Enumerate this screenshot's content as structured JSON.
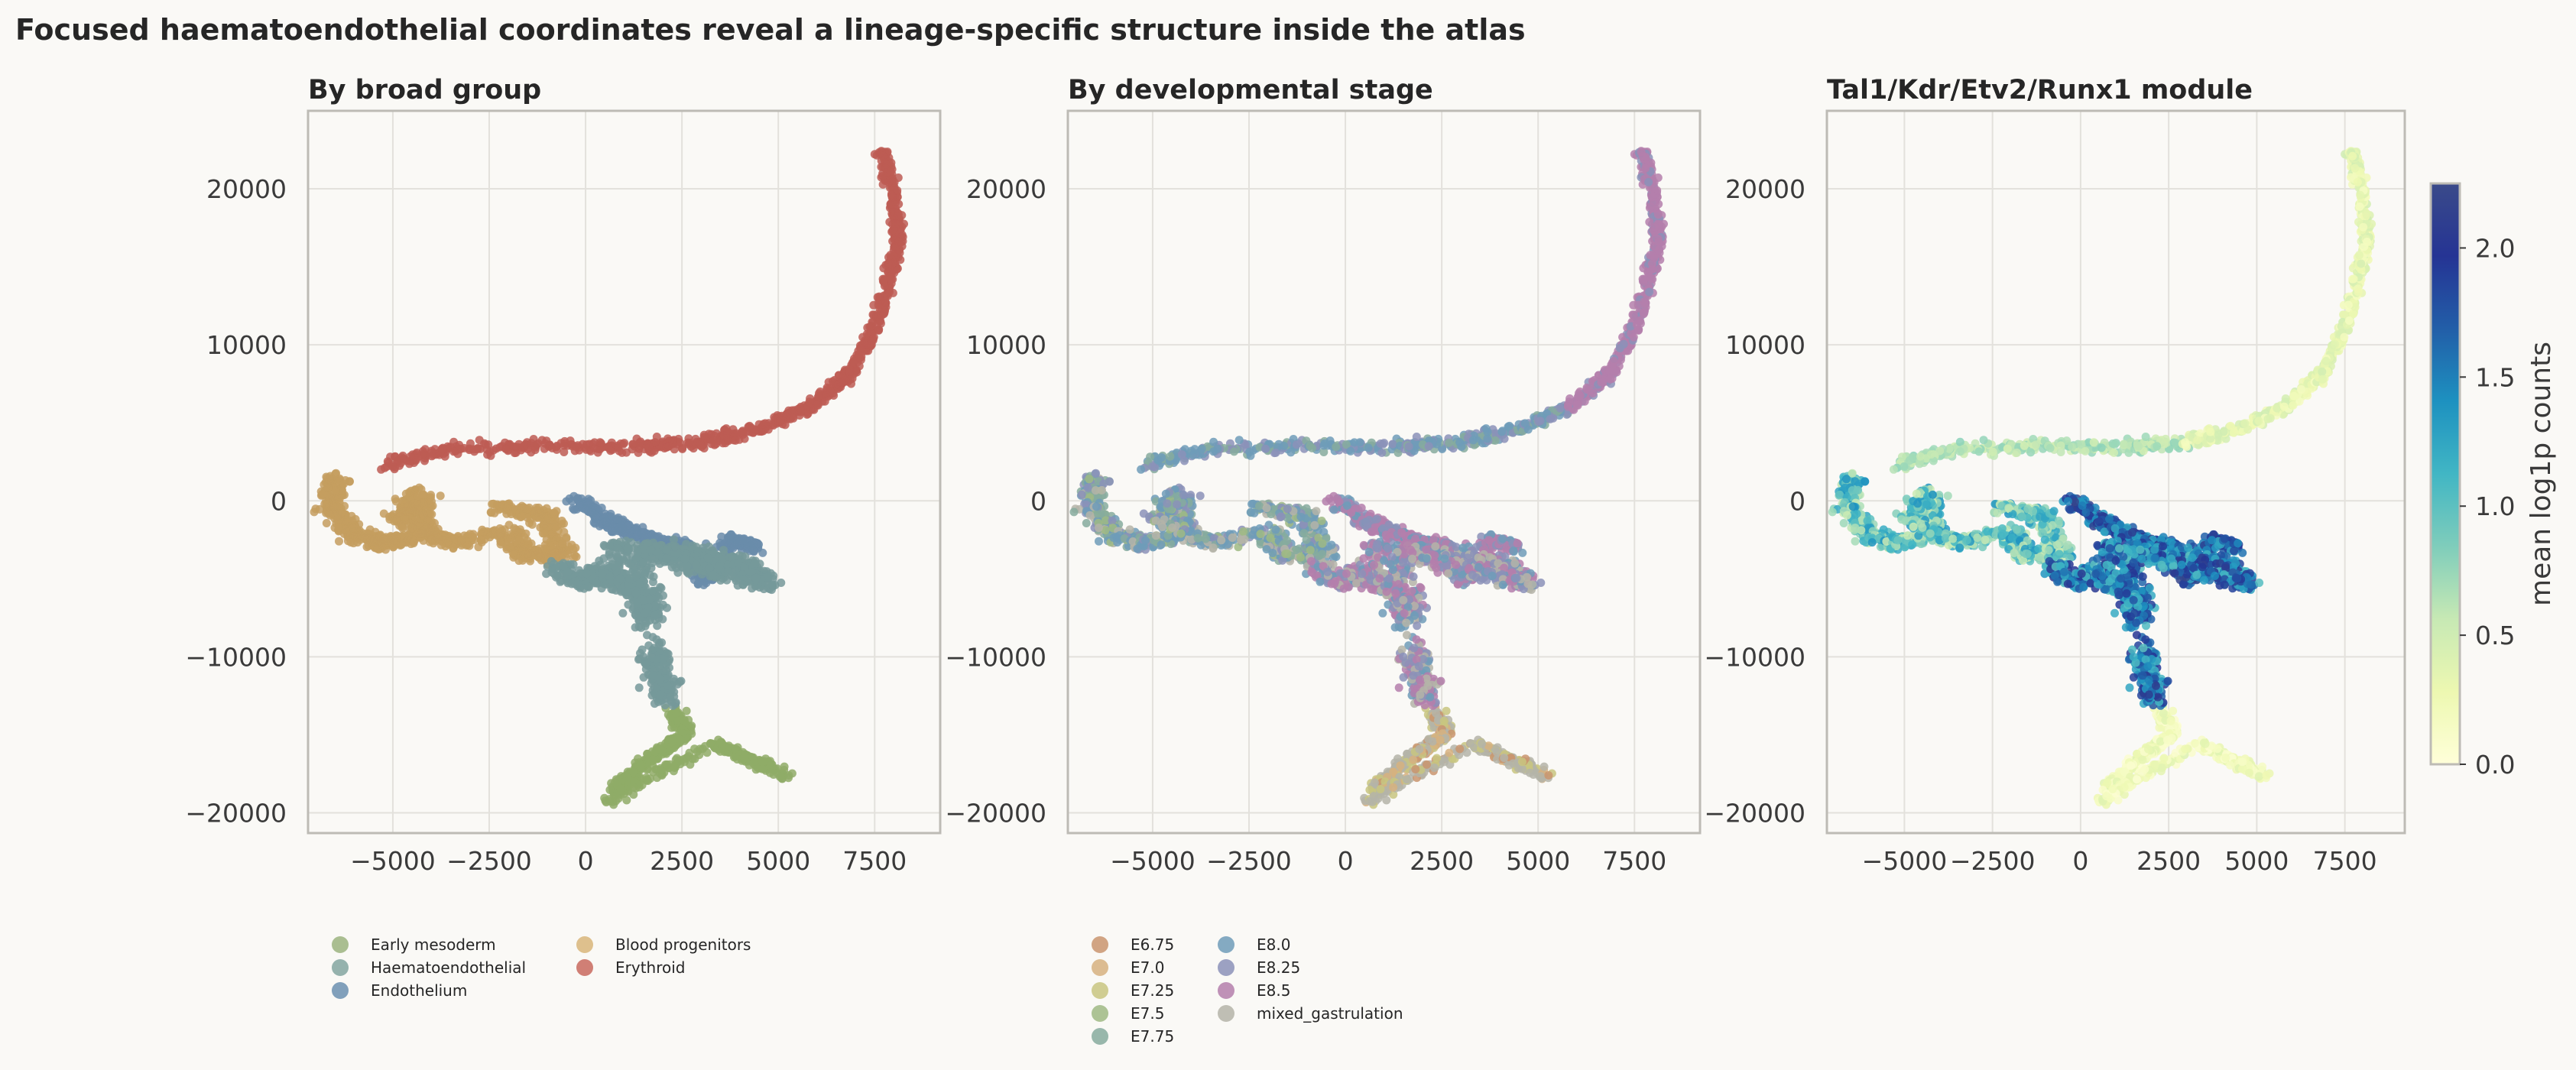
{
  "figure": {
    "suptitle": "Focused haematoendothelial coordinates reveal a lineage-specific structure inside the atlas"
  },
  "chart_data": [
    {
      "type": "scatter",
      "title": "By broad group",
      "xlabel": "",
      "ylabel": "",
      "xlim": [
        -7200,
        9200
      ],
      "ylim": [
        -21300,
        25000
      ],
      "xticks": [
        -5000,
        -2500,
        0,
        2500,
        5000,
        7500
      ],
      "yticks": [
        -20000,
        -10000,
        0,
        10000,
        20000
      ],
      "grid": true,
      "color_by": "category",
      "legend": {
        "placement": "bottom",
        "columns": 2,
        "entries": [
          {
            "label": "Early mesoderm",
            "color": "#9bb47f"
          },
          {
            "label": "Haematoendothelial",
            "color": "#82a6a0"
          },
          {
            "label": "Endothelium",
            "color": "#6b90b0"
          },
          {
            "label": "Blood progenitors",
            "color": "#d8b67a"
          },
          {
            "label": "Erythroid",
            "color": "#c86a5e"
          }
        ]
      },
      "series": [
        {
          "name": "Erythroid",
          "color": "#bd5c53",
          "points": [
            [
              -5200,
              2300
            ],
            [
              -3500,
              3300
            ],
            [
              -1000,
              3500
            ],
            [
              1500,
              3500
            ],
            [
              3000,
              3800
            ],
            [
              4500,
              4600
            ],
            [
              5800,
              6000
            ],
            [
              6800,
              8000
            ],
            [
              7400,
              10500
            ],
            [
              7800,
              13500
            ],
            [
              8100,
              16500
            ],
            [
              8000,
              19500
            ],
            [
              7700,
              22500
            ]
          ]
        },
        {
          "name": "Blood progenitors",
          "color": "#c49e5f",
          "points": [
            [
              -6500,
              1500
            ],
            [
              -6600,
              -400
            ],
            [
              -6000,
              -2200
            ],
            [
              -5200,
              -2700
            ],
            [
              -4000,
              -2300
            ],
            [
              -4300,
              500
            ],
            [
              -4800,
              -1200
            ],
            [
              -3500,
              -2700
            ],
            [
              -2000,
              -2000
            ],
            [
              -1500,
              -3500
            ],
            [
              -600,
              -3500
            ],
            [
              -1000,
              -900
            ],
            [
              -2200,
              -400
            ]
          ]
        },
        {
          "name": "Haematoendothelial",
          "color": "#75999a",
          "points": [
            [
              -800,
              -4200
            ],
            [
              0,
              -5300
            ],
            [
              400,
              -4500
            ],
            [
              1500,
              -6000
            ],
            [
              1700,
              -7500
            ],
            [
              1300,
              -3300
            ],
            [
              2500,
              -3300
            ],
            [
              3500,
              -3700
            ],
            [
              4200,
              -4200
            ],
            [
              4700,
              -5300
            ],
            [
              3000,
              -4300
            ],
            [
              700,
              -2700
            ],
            [
              1800,
              -9500
            ],
            [
              1900,
              -11500
            ],
            [
              2200,
              -12800
            ]
          ]
        },
        {
          "name": "Endothelium",
          "color": "#6a8caa",
          "points": [
            [
              -200,
              0
            ],
            [
              500,
              -1200
            ],
            [
              1200,
              -2000
            ],
            [
              2000,
              -2700
            ],
            [
              2700,
              -2900
            ],
            [
              3000,
              -5100
            ],
            [
              3800,
              -2500
            ],
            [
              4400,
              -3000
            ]
          ]
        },
        {
          "name": "Early mesoderm",
          "color": "#8fac67",
          "points": [
            [
              2300,
              -13500
            ],
            [
              2600,
              -15000
            ],
            [
              2000,
              -16000
            ],
            [
              1200,
              -17500
            ],
            [
              600,
              -19100
            ],
            [
              3300,
              -15600
            ],
            [
              4200,
              -16500
            ],
            [
              5200,
              -17600
            ]
          ]
        }
      ]
    },
    {
      "type": "scatter",
      "title": "By developmental stage",
      "xlabel": "",
      "ylabel": "",
      "xlim": [
        -7200,
        9200
      ],
      "ylim": [
        -21300,
        25000
      ],
      "xticks": [
        -5000,
        -2500,
        0,
        2500,
        5000,
        7500
      ],
      "yticks": [
        -20000,
        -10000,
        0,
        10000,
        20000
      ],
      "grid": true,
      "color_by": "category",
      "legend": {
        "placement": "bottom",
        "columns": 2,
        "entries": [
          {
            "label": "E6.75",
            "color": "#c9956f"
          },
          {
            "label": "E7.0",
            "color": "#d6b27f"
          },
          {
            "label": "E7.25",
            "color": "#c8c580"
          },
          {
            "label": "E7.5",
            "color": "#9fba84"
          },
          {
            "label": "E7.75",
            "color": "#86ab9d"
          },
          {
            "label": "E8.0",
            "color": "#6f9cb8"
          },
          {
            "label": "E8.25",
            "color": "#8b92b8"
          },
          {
            "label": "E8.5",
            "color": "#b47fab"
          },
          {
            "label": "mixed_gastrulation",
            "color": "#b4b4a8"
          }
        ]
      }
    },
    {
      "type": "scatter",
      "title": "Tal1/Kdr/Etv2/Runx1 module",
      "xlabel": "",
      "ylabel": "",
      "xlim": [
        -7200,
        9200
      ],
      "ylim": [
        -21300,
        25000
      ],
      "xticks": [
        -5000,
        -2500,
        0,
        2500,
        5000,
        7500
      ],
      "yticks": [
        -20000,
        -10000,
        0,
        10000,
        20000
      ],
      "grid": true,
      "color_by": "continuous",
      "colorbar": {
        "label": "mean log1p counts",
        "range": [
          0,
          2.25
        ],
        "ticks": [
          0.0,
          0.5,
          1.0,
          1.5,
          2.0
        ],
        "tick_labels": [
          "0.0",
          "0.5",
          "1.0",
          "1.5",
          "2.0"
        ],
        "colormap": [
          "#ffffd9",
          "#edf8b1",
          "#c7e9b4",
          "#7fcdbb",
          "#41b6c4",
          "#1d91c0",
          "#225ea8",
          "#253494",
          "#3a4a8a"
        ]
      }
    }
  ]
}
